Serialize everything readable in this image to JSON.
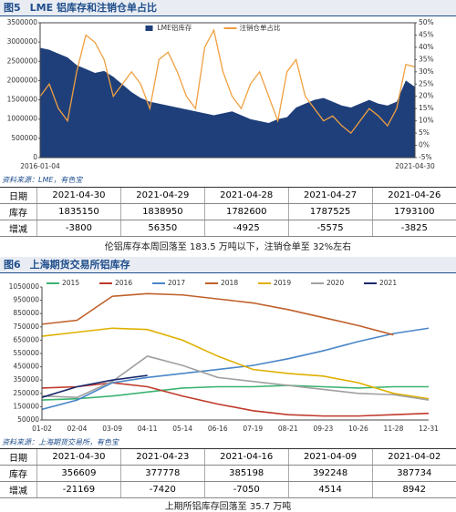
{
  "figures": [
    {
      "label": "图5",
      "title": "LME 铝库存和注销仓单占比",
      "source": "资料来源：LME，有色宝",
      "table": {
        "rows": [
          [
            "日期",
            "2021-04-30",
            "2021-04-29",
            "2021-04-28",
            "2021-04-27",
            "2021-04-26"
          ],
          [
            "库存",
            1835150,
            1838950,
            1782600,
            1787525,
            1793100
          ],
          [
            "增减",
            -3800,
            56350,
            -4925,
            -5575,
            -3825
          ]
        ]
      },
      "caption": "伦铝库存本周回落至 183.5 万吨以下，注销仓单至 32%左右"
    },
    {
      "label": "图6",
      "title": "上海期货交易所铝库存",
      "source": "资料来源：上海期货交易所，有色宝",
      "table": {
        "rows": [
          [
            "日期",
            "2021-04-30",
            "2021-04-23",
            "2021-04-16",
            "2021-04-09",
            "2021-04-02"
          ],
          [
            "库存",
            356609,
            377778,
            385198,
            392248,
            387734
          ],
          [
            "增减",
            -21169,
            -7420,
            -7050,
            4514,
            8942
          ]
        ]
      },
      "caption": "上期所铝库存回落至 35.7 万吨"
    }
  ],
  "chart_data": [
    {
      "type": "combo",
      "legend": "top",
      "categories": [
        "2016-01-04",
        null,
        null,
        null,
        null,
        null,
        null,
        null,
        null,
        null,
        null,
        null,
        null,
        null,
        null,
        null,
        null,
        null,
        null,
        null,
        null,
        null,
        null,
        null,
        null,
        null,
        null,
        null,
        null,
        null,
        null,
        null,
        null,
        null,
        null,
        null,
        null,
        null,
        null,
        null,
        null,
        "2021-04-30"
      ],
      "series": [
        {
          "name": "LME铝库存",
          "type": "area",
          "color": "#1f3f7a",
          "values": [
            2850000,
            2800000,
            2700000,
            2600000,
            2400000,
            2300000,
            2200000,
            2250000,
            2100000,
            1900000,
            1700000,
            1550000,
            1450000,
            1400000,
            1350000,
            1300000,
            1250000,
            1200000,
            1150000,
            1100000,
            1150000,
            1200000,
            1100000,
            1000000,
            950000,
            900000,
            1000000,
            1050000,
            1300000,
            1400000,
            1500000,
            1550000,
            1450000,
            1350000,
            1300000,
            1400000,
            1500000,
            1400000,
            1350000,
            1450000,
            2000000,
            1835150
          ]
        },
        {
          "name": "注销仓单占比",
          "type": "line",
          "axis": "y2",
          "color": "#f0a040",
          "values": [
            20,
            25,
            15,
            10,
            30,
            45,
            42,
            35,
            20,
            25,
            30,
            25,
            15,
            35,
            38,
            30,
            20,
            15,
            40,
            47,
            30,
            20,
            15,
            25,
            30,
            20,
            10,
            30,
            35,
            20,
            15,
            10,
            12,
            8,
            5,
            10,
            15,
            12,
            8,
            15,
            33,
            32
          ]
        }
      ],
      "ylim": [
        0,
        3500000
      ],
      "yticks": [
        0,
        500000,
        1000000,
        1500000,
        2000000,
        2500000,
        3000000,
        3500000
      ],
      "y2lim": [
        -5,
        50
      ],
      "y2ticks": [
        {
          "value": -5,
          "label": "-5%"
        },
        {
          "value": 0,
          "label": "0%"
        },
        {
          "value": 5,
          "label": "5%"
        },
        {
          "value": 10,
          "label": "10%"
        },
        {
          "value": 15,
          "label": "15%"
        },
        {
          "value": 20,
          "label": "20%"
        },
        {
          "value": 25,
          "label": "25%"
        },
        {
          "value": 30,
          "label": "30%"
        },
        {
          "value": 35,
          "label": "35%"
        },
        {
          "value": 40,
          "label": "40%"
        },
        {
          "value": 45,
          "label": "45%"
        },
        {
          "value": 50,
          "label": "50%"
        }
      ],
      "grid": false
    },
    {
      "type": "line",
      "legend": "top",
      "categories": [
        "01-02",
        "02-04",
        "03-09",
        "04-11",
        "05-14",
        "06-16",
        "07-19",
        "08-21",
        "09-23",
        "10-26",
        "11-28",
        "12-31"
      ],
      "series": [
        {
          "name": "2015",
          "color": "#3cb371",
          "values": [
            200000,
            210000,
            230000,
            260000,
            290000,
            300000,
            300000,
            310000,
            300000,
            290000,
            300000,
            300000
          ]
        },
        {
          "name": "2016",
          "color": "#c0392b",
          "values": [
            290000,
            300000,
            330000,
            300000,
            230000,
            170000,
            120000,
            90000,
            80000,
            80000,
            90000,
            100000
          ]
        },
        {
          "name": "2017",
          "color": "#4a86c8",
          "values": [
            130000,
            200000,
            330000,
            370000,
            400000,
            430000,
            460000,
            510000,
            570000,
            640000,
            700000,
            740000
          ]
        },
        {
          "name": "2018",
          "color": "#c0602a",
          "values": [
            770000,
            800000,
            980000,
            1000000,
            990000,
            960000,
            930000,
            880000,
            820000,
            760000,
            690000,
            null
          ]
        },
        {
          "name": "2019",
          "color": "#e0b000",
          "values": [
            680000,
            710000,
            740000,
            730000,
            650000,
            530000,
            430000,
            400000,
            380000,
            330000,
            250000,
            210000
          ]
        },
        {
          "name": "2020",
          "color": "#a0a0a0",
          "values": [
            230000,
            220000,
            340000,
            530000,
            460000,
            370000,
            340000,
            310000,
            280000,
            250000,
            240000,
            200000
          ]
        },
        {
          "name": "2021",
          "color": "#1a2a6c",
          "values": [
            220000,
            300000,
            350000,
            385000,
            null,
            null,
            null,
            null,
            null,
            null,
            null,
            null
          ]
        }
      ],
      "ylim": [
        50000,
        1050000
      ],
      "yticks": [
        50000,
        150000,
        250000,
        350000,
        450000,
        550000,
        650000,
        750000,
        850000,
        950000,
        1050000
      ],
      "grid": false
    }
  ]
}
